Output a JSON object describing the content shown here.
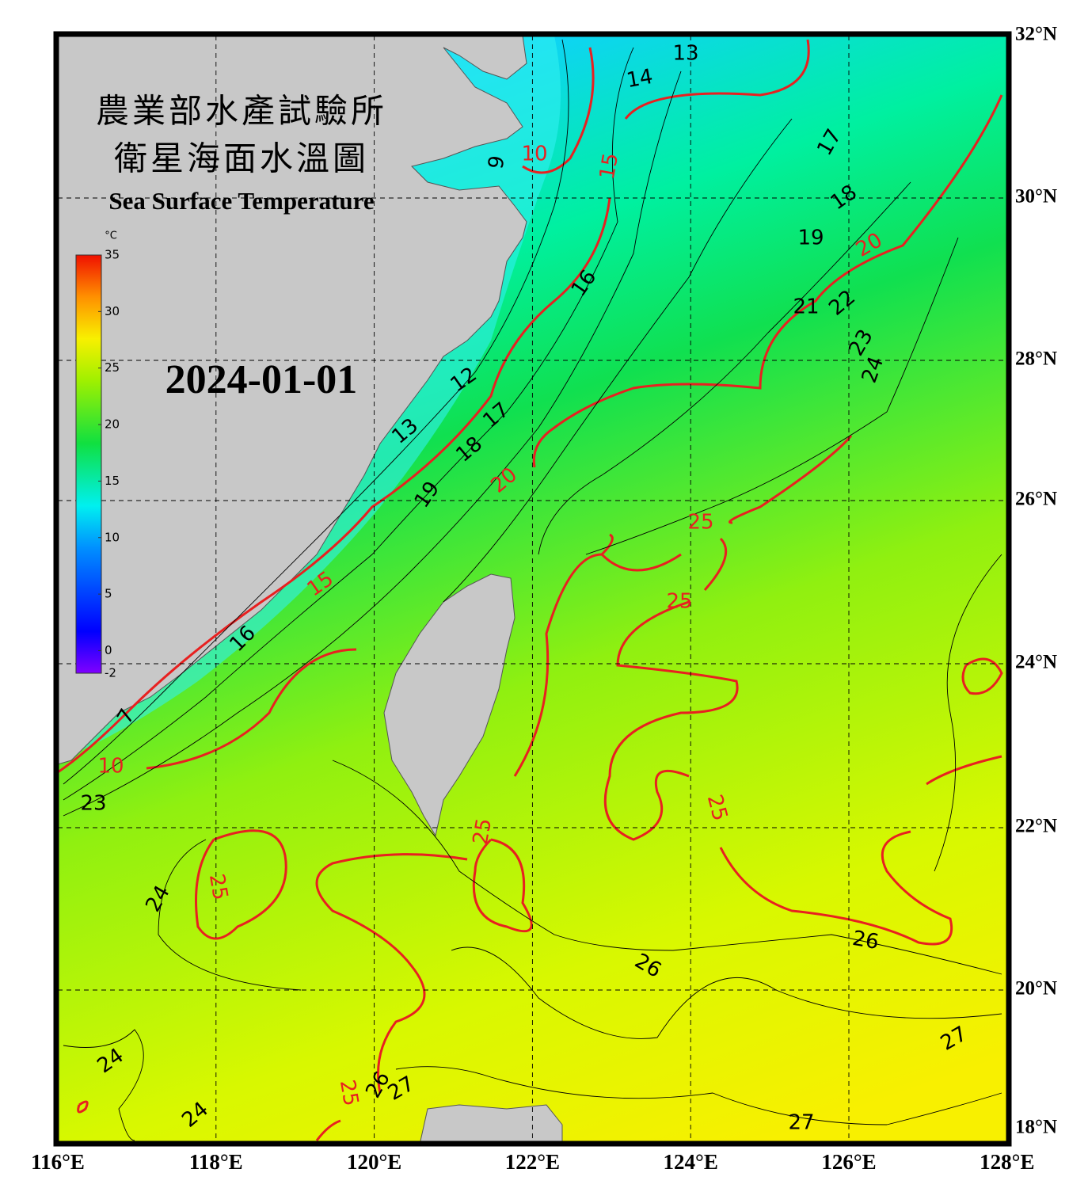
{
  "header": {
    "title_zh": [
      "農業部水產試驗所",
      "衛星海面水溫圖"
    ],
    "title_en": "Sea Surface Temperature",
    "date": "2024-01-01"
  },
  "colorbar": {
    "unit": "°C",
    "ticks": [
      35,
      30,
      25,
      20,
      15,
      10,
      5,
      0,
      -2
    ],
    "range": [
      -2,
      35
    ]
  },
  "axes": {
    "lon_labels": [
      "116°E",
      "118°E",
      "120°E",
      "122°E",
      "124°E",
      "126°E",
      "128°E"
    ],
    "lat_labels": [
      "32°N",
      "30°N",
      "28°N",
      "26°N",
      "24°N",
      "22°N",
      "20°N",
      "18°N"
    ]
  },
  "contour_labels": [
    "13",
    "14",
    "10",
    "15",
    "9",
    "17",
    "18",
    "19",
    "20",
    "21",
    "22",
    "23",
    "24",
    "16",
    "12",
    "17",
    "18",
    "13",
    "19",
    "20",
    "15",
    "25",
    "25",
    "16",
    "7",
    "23",
    "24",
    "25",
    "25",
    "25",
    "26",
    "26",
    "27",
    "24",
    "24",
    "25",
    "26",
    "27",
    "27",
    "10"
  ]
}
